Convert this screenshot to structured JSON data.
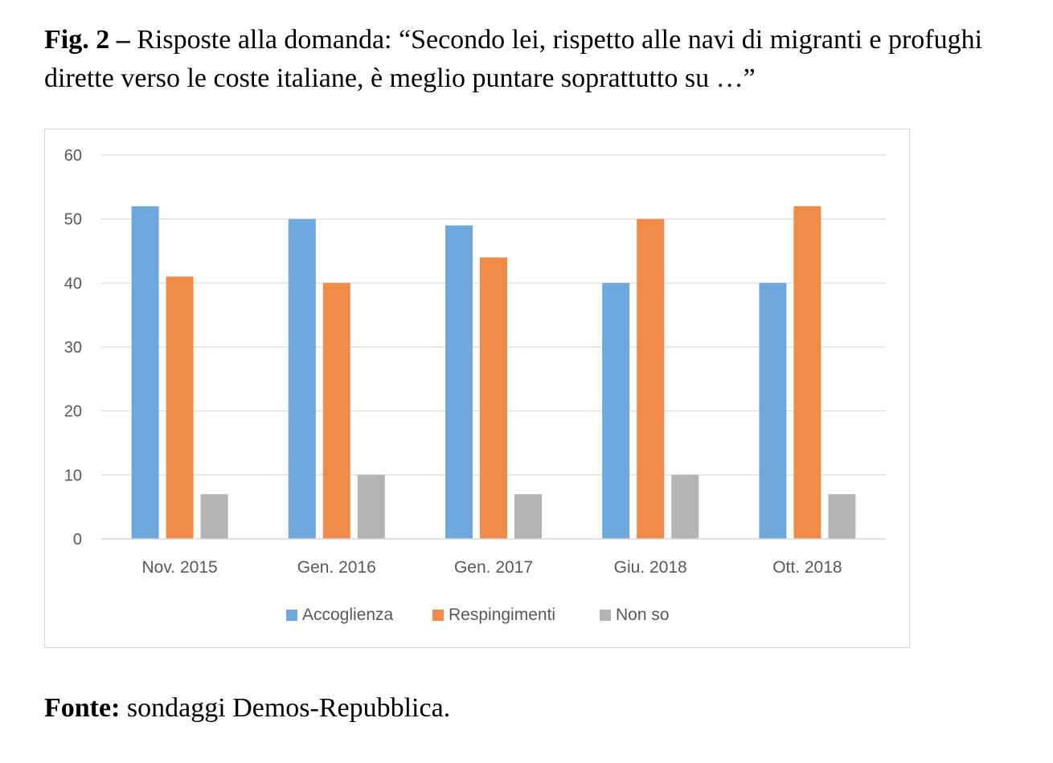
{
  "caption": {
    "label": "Fig. 2 –",
    "text": "Risposte alla domanda: “Secondo lei, rispetto alle navi di migranti e profughi dirette verso le coste italiane, è meglio puntare soprattutto su …”"
  },
  "source": {
    "label": "Fonte:",
    "text": "sondaggi Demos-Repubblica."
  },
  "chart_data": {
    "type": "bar",
    "title": "",
    "xlabel": "",
    "ylabel": "",
    "categories": [
      "Nov. 2015",
      "Gen. 2016",
      "Gen. 2017",
      "Giu. 2018",
      "Ott. 2018"
    ],
    "series": [
      {
        "name": "Accoglienza",
        "color": "#6fa8dc",
        "values": [
          52,
          50,
          49,
          40,
          40
        ]
      },
      {
        "name": "Respingimenti",
        "color": "#f08c47",
        "values": [
          41,
          40,
          44,
          50,
          52
        ]
      },
      {
        "name": "Non so",
        "color": "#b4b4b4",
        "values": [
          7,
          10,
          7,
          10,
          7
        ]
      }
    ],
    "ylim": [
      0,
      60
    ],
    "yticks": [
      0,
      10,
      20,
      30,
      40,
      50,
      60
    ],
    "grid": true,
    "legend": "bottom"
  }
}
